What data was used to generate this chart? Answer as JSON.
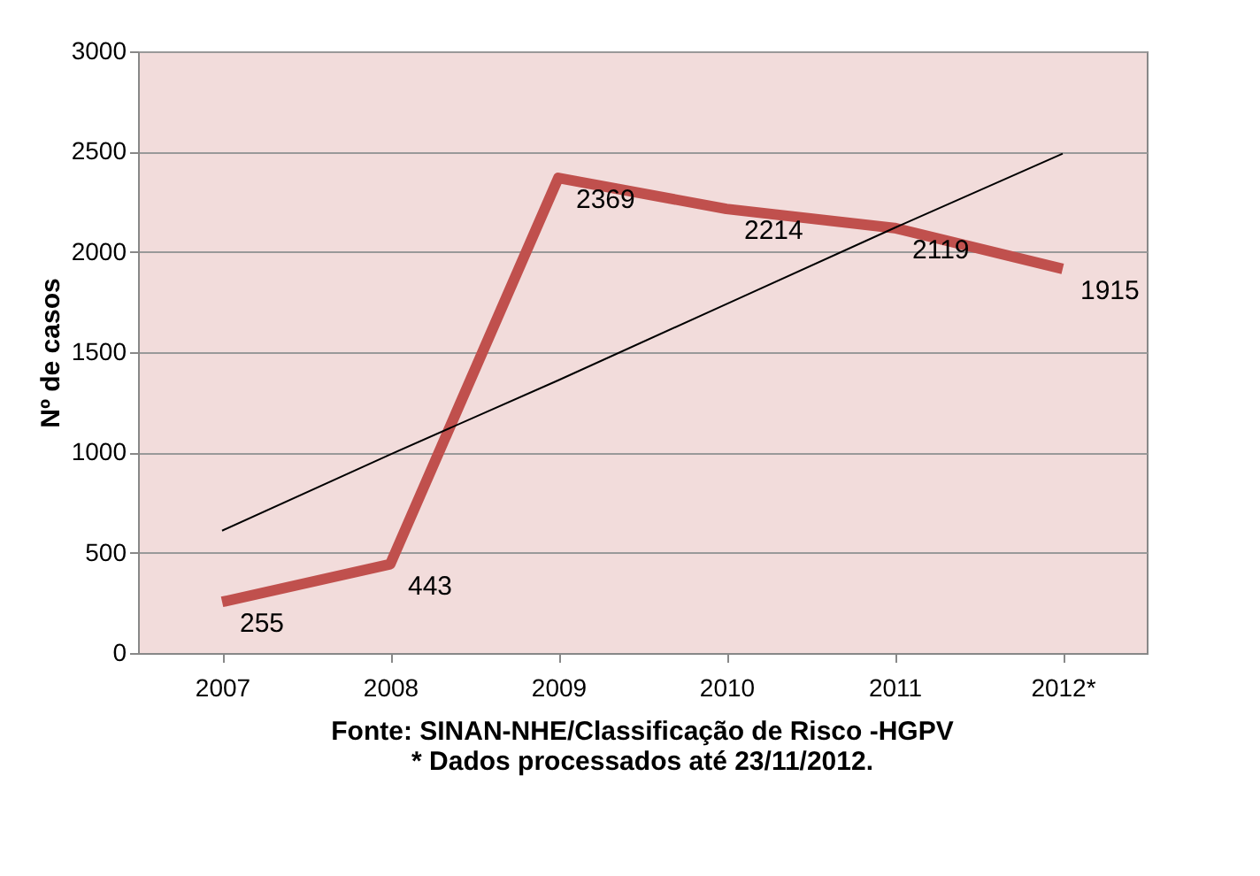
{
  "chart_data": {
    "type": "line",
    "categories": [
      "2007",
      "2008",
      "2009",
      "2010",
      "2011",
      "2012*"
    ],
    "series": [
      {
        "color": "#c0504d",
        "values": [
          255,
          443,
          2369,
          2214,
          2119,
          1915
        ],
        "value_labels": [
          "255",
          "443",
          "2369",
          "2214",
          "2119",
          "1915"
        ]
      },
      {
        "color": "#000000",
        "values": [
          610,
          990,
          1360,
          1740,
          2120,
          2490
        ]
      }
    ],
    "ylabel": "Nº de casos",
    "ylim": [
      0,
      3000
    ],
    "yticks": [
      0,
      500,
      1000,
      1500,
      2000,
      2500,
      3000
    ],
    "grid": "y",
    "marker": "none",
    "line_style": "solid",
    "annotations": [
      "Fonte: SINAN-NHE/Classificação de Risco -HGPV",
      "* Dados processados até 23/11/2012."
    ]
  }
}
